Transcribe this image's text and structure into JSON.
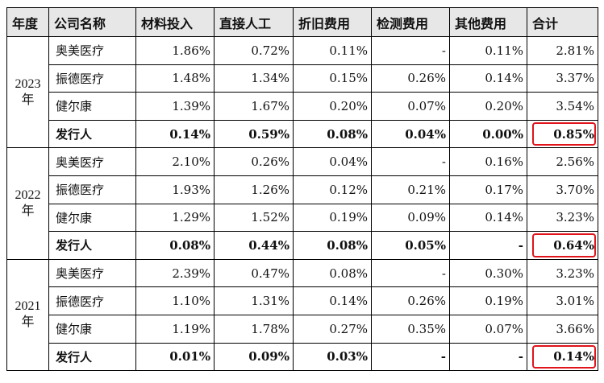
{
  "headers": [
    "年度",
    "公司名称",
    "材料投入",
    "直接人工",
    "折旧费用",
    "检测费用",
    "其他费用",
    "合计"
  ],
  "groups": [
    {
      "year": "2023",
      "year_suffix": "年",
      "rows": [
        {
          "company": "奥美医疗",
          "cells": [
            "1.86%",
            "0.72%",
            "0.11%",
            "-",
            "0.11%",
            "2.81%"
          ]
        },
        {
          "company": "振德医疗",
          "cells": [
            "1.48%",
            "1.34%",
            "0.15%",
            "0.26%",
            "0.14%",
            "3.37%"
          ]
        },
        {
          "company": "健尔康",
          "cells": [
            "1.39%",
            "1.67%",
            "0.20%",
            "0.07%",
            "0.20%",
            "3.54%"
          ]
        },
        {
          "company": "发行人",
          "cells": [
            "0.14%",
            "0.59%",
            "0.08%",
            "0.04%",
            "0.00%",
            "0.85%"
          ]
        }
      ]
    },
    {
      "year": "2022",
      "year_suffix": "年",
      "rows": [
        {
          "company": "奥美医疗",
          "cells": [
            "2.10%",
            "0.26%",
            "0.04%",
            "-",
            "0.16%",
            "2.56%"
          ]
        },
        {
          "company": "振德医疗",
          "cells": [
            "1.93%",
            "1.26%",
            "0.12%",
            "0.21%",
            "0.17%",
            "3.70%"
          ]
        },
        {
          "company": "健尔康",
          "cells": [
            "1.29%",
            "1.52%",
            "0.19%",
            "0.09%",
            "0.14%",
            "3.23%"
          ]
        },
        {
          "company": "发行人",
          "cells": [
            "0.08%",
            "0.44%",
            "0.08%",
            "0.05%",
            "-",
            "0.64%"
          ]
        }
      ]
    },
    {
      "year": "2021",
      "year_suffix": "年",
      "rows": [
        {
          "company": "奥美医疗",
          "cells": [
            "2.39%",
            "0.47%",
            "0.08%",
            "-",
            "0.30%",
            "3.23%"
          ]
        },
        {
          "company": "振德医疗",
          "cells": [
            "1.10%",
            "1.31%",
            "0.14%",
            "0.26%",
            "0.19%",
            "3.01%"
          ]
        },
        {
          "company": "健尔康",
          "cells": [
            "1.19%",
            "1.78%",
            "0.27%",
            "0.35%",
            "0.07%",
            "3.66%"
          ]
        },
        {
          "company": "发行人",
          "cells": [
            "0.01%",
            "0.09%",
            "0.03%",
            "-",
            "-",
            "0.14%"
          ]
        }
      ]
    }
  ],
  "highlight_color": "#e0141a",
  "header_bg": "#e7e7e7"
}
